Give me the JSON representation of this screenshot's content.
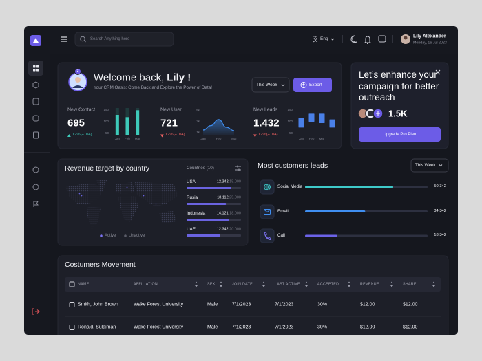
{
  "topbar": {
    "search_placeholder": "Search Anything here",
    "language": "Eng",
    "user_name": "Lily Alexander",
    "date": "Monday, 16 Jul 2023"
  },
  "welcome": {
    "greeting": "Welcome back,",
    "name": "Lily !",
    "subtitle": "Your CRM Oasis: Come Back and Explore the Power of Data!",
    "badge": "2",
    "period": "This Week",
    "export": "Export"
  },
  "stats": [
    {
      "label": "New Contact",
      "value": "695",
      "change": "12%(+104)",
      "trend": "up"
    },
    {
      "label": "New User",
      "value": "721",
      "change": "12%(+104)",
      "trend": "down"
    },
    {
      "label": "New Leads",
      "value": "1.432",
      "change": "12%(+104)",
      "trend": "down"
    }
  ],
  "chart_data": [
    {
      "type": "bar",
      "categories": [
        "Jan",
        "Feb",
        "Mar"
      ],
      "values": [
        130,
        120,
        150
      ],
      "ylim": [
        40,
        160
      ],
      "yticks": [
        50,
        100,
        150
      ],
      "color": "#3ec9b9"
    },
    {
      "type": "line",
      "x": [
        "Jan",
        null,
        "Feb",
        null,
        "Mar"
      ],
      "values": [
        1.5,
        2.3,
        3.4,
        2.0,
        1.4
      ],
      "ylim": [
        0.5,
        5.5
      ],
      "yticks": [
        {
          "value": 1,
          "label": "1k"
        },
        {
          "value": 3,
          "label": "3k"
        },
        {
          "value": 5,
          "label": "5k"
        }
      ],
      "color": "#3f8ef0"
    },
    {
      "type": "range",
      "categories": [
        "Jan",
        "Feb",
        "Mar",
        null
      ],
      "low": [
        75,
        100,
        94,
        75
      ],
      "high": [
        117,
        135,
        135,
        110
      ],
      "ylim": [
        40,
        160
      ],
      "yticks": [
        50,
        100,
        150
      ],
      "color": "#4a80e8"
    }
  ],
  "promo": {
    "title": "Let’s enhance your campaign for better outreach",
    "count": "1.5K",
    "button": "Upgrade Pro Plan"
  },
  "revenue": {
    "title": "Revenue target by country",
    "countries_label": "Countries (10)",
    "legend": [
      "Active",
      "Unactive"
    ],
    "rows": [
      {
        "name": "USA",
        "value": 12342,
        "value_label": "12.342",
        "target": 15000,
        "target_label": "/15.000"
      },
      {
        "name": "Rusia",
        "value": 18112,
        "value_label": "18.112",
        "target": 25000,
        "target_label": "/25.000"
      },
      {
        "name": "Indonesia",
        "value": 14121,
        "value_label": "14.121",
        "target": 18000,
        "target_label": "/18.000"
      },
      {
        "name": "UAE",
        "value": 12342,
        "value_label": "12.342",
        "target": 20000,
        "target_label": "/20.000"
      }
    ]
  },
  "leads": {
    "title": "Most customers leads",
    "period": "This Week",
    "xlim": [
      0,
      70000
    ],
    "items": [
      {
        "name": "Social Media",
        "value": 50342,
        "label": "50.342",
        "color": "#3ec9c9"
      },
      {
        "name": "Email",
        "value": 34342,
        "label": "34.342",
        "color": "#3f8ef0"
      },
      {
        "name": "Call",
        "value": 18342,
        "label": "18.342",
        "color": "#6c63e8"
      }
    ]
  },
  "table": {
    "title": "Costumers Movement",
    "columns": [
      "NAME",
      "AFFILIATION",
      "SEX",
      "JOIN DATE",
      "LAST ACTIVE",
      "ACCEPTED",
      "REVENUE",
      "SHARE"
    ],
    "rows": [
      [
        "Smith, John Brown",
        "Wake Forest University",
        "Male",
        "7/1/2023",
        "7/1/2023",
        "30%",
        "$12.00",
        "$12.00"
      ],
      [
        "Ronald, Sulaiman",
        "Wake Forest University",
        "Male",
        "7/1/2023",
        "7/1/2023",
        "30%",
        "$12.00",
        "$12.00"
      ]
    ]
  }
}
